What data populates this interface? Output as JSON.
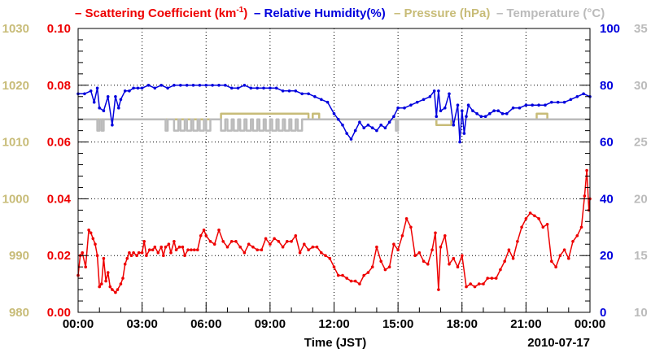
{
  "chart_data": {
    "type": "line",
    "title": "",
    "xlabel": "Time (JST)",
    "date_label": "2010-07-17",
    "x_ticks": [
      "00:00",
      "03:00",
      "06:00",
      "09:00",
      "12:00",
      "15:00",
      "18:00",
      "21:00",
      "00:00"
    ],
    "x_range_hours": [
      0,
      24
    ],
    "grid": true,
    "legend": {
      "scattering": {
        "dash": "–",
        "text": "Scattering Coefficient (km",
        "sup": "-1",
        "close": ")"
      },
      "humidity": "– Relative Humidity(%)",
      "pressure": "– Pressure (hPa)",
      "temperature": "– Temperature (°C)"
    },
    "axes": {
      "scattering": {
        "ylim": [
          0,
          0.1
        ],
        "ticks": [
          "0.00",
          "0.02",
          "0.04",
          "0.06",
          "0.08",
          "0.10"
        ],
        "color": "#ee0000"
      },
      "pressure": {
        "ylim": [
          980,
          1030
        ],
        "ticks": [
          "980",
          "990",
          "1000",
          "1010",
          "1020",
          "1030"
        ],
        "color": "#c8bc78"
      },
      "humidity": {
        "ylim": [
          0,
          100
        ],
        "ticks": [
          "0",
          "20",
          "40",
          "60",
          "80",
          "100"
        ],
        "color": "#0000dd"
      },
      "temperature": {
        "ylim": [
          10,
          35
        ],
        "ticks": [
          "10",
          "15",
          "20",
          "25",
          "30",
          "35"
        ],
        "color": "#bbbbbb"
      }
    },
    "series": [
      {
        "name": "Scattering Coefficient",
        "unit": "km-1",
        "axis": "scattering",
        "color": "#ee0000",
        "x": [
          0,
          0.1,
          0.2,
          0.35,
          0.5,
          0.6,
          0.7,
          0.8,
          0.9,
          1.0,
          1.1,
          1.2,
          1.3,
          1.4,
          1.5,
          1.6,
          1.75,
          1.85,
          2.0,
          2.1,
          2.2,
          2.3,
          2.4,
          2.5,
          2.6,
          2.75,
          2.85,
          3.0,
          3.1,
          3.2,
          3.35,
          3.5,
          3.6,
          3.75,
          3.9,
          4.0,
          4.1,
          4.25,
          4.35,
          4.5,
          4.6,
          4.75,
          4.9,
          5.0,
          5.15,
          5.3,
          5.45,
          5.6,
          5.75,
          5.9,
          6.0,
          6.2,
          6.4,
          6.6,
          6.8,
          7.0,
          7.2,
          7.4,
          7.6,
          7.8,
          8.0,
          8.2,
          8.4,
          8.6,
          8.8,
          9.0,
          9.2,
          9.4,
          9.6,
          9.8,
          10.0,
          10.2,
          10.4,
          10.6,
          10.8,
          11.0,
          11.2,
          11.4,
          11.6,
          11.8,
          12.0,
          12.2,
          12.4,
          12.6,
          12.8,
          13.0,
          13.2,
          13.4,
          13.6,
          13.8,
          14.0,
          14.2,
          14.4,
          14.6,
          14.8,
          15.0,
          15.2,
          15.4,
          15.6,
          15.8,
          16.0,
          16.2,
          16.4,
          16.6,
          16.75,
          16.9,
          17.0,
          17.2,
          17.4,
          17.6,
          17.8,
          18.0,
          18.2,
          18.4,
          18.6,
          18.8,
          19.0,
          19.2,
          19.4,
          19.6,
          19.8,
          20.0,
          20.2,
          20.4,
          20.6,
          20.8,
          21.0,
          21.2,
          21.4,
          21.6,
          21.8,
          22.0,
          22.2,
          22.4,
          22.6,
          22.8,
          23.0,
          23.2,
          23.4,
          23.6,
          23.75,
          23.85,
          23.95,
          24.0
        ],
        "y": [
          0.013,
          0.02,
          0.021,
          0.016,
          0.029,
          0.028,
          0.026,
          0.024,
          0.02,
          0.009,
          0.01,
          0.019,
          0.011,
          0.014,
          0.009,
          0.008,
          0.007,
          0.008,
          0.01,
          0.012,
          0.017,
          0.019,
          0.021,
          0.02,
          0.021,
          0.02,
          0.021,
          0.021,
          0.025,
          0.02,
          0.022,
          0.022,
          0.023,
          0.021,
          0.023,
          0.02,
          0.023,
          0.024,
          0.021,
          0.025,
          0.022,
          0.023,
          0.023,
          0.02,
          0.022,
          0.022,
          0.022,
          0.022,
          0.027,
          0.029,
          0.027,
          0.025,
          0.024,
          0.029,
          0.025,
          0.023,
          0.025,
          0.025,
          0.023,
          0.021,
          0.024,
          0.023,
          0.022,
          0.022,
          0.026,
          0.024,
          0.026,
          0.025,
          0.023,
          0.025,
          0.025,
          0.027,
          0.021,
          0.024,
          0.022,
          0.023,
          0.023,
          0.021,
          0.02,
          0.019,
          0.016,
          0.013,
          0.013,
          0.012,
          0.011,
          0.011,
          0.01,
          0.013,
          0.014,
          0.016,
          0.023,
          0.018,
          0.015,
          0.016,
          0.024,
          0.022,
          0.027,
          0.033,
          0.03,
          0.02,
          0.021,
          0.018,
          0.017,
          0.022,
          0.028,
          0.008,
          0.023,
          0.027,
          0.017,
          0.019,
          0.016,
          0.02,
          0.009,
          0.01,
          0.009,
          0.01,
          0.01,
          0.012,
          0.012,
          0.012,
          0.015,
          0.018,
          0.022,
          0.019,
          0.025,
          0.03,
          0.033,
          0.035,
          0.034,
          0.033,
          0.03,
          0.031,
          0.018,
          0.016,
          0.02,
          0.022,
          0.019,
          0.025,
          0.027,
          0.03,
          0.041,
          0.05,
          0.036,
          0.04
        ]
      },
      {
        "name": "Relative Humidity",
        "unit": "%",
        "axis": "humidity",
        "color": "#0000dd",
        "x": [
          0,
          0.3,
          0.6,
          0.75,
          0.9,
          1.0,
          1.2,
          1.4,
          1.6,
          1.75,
          1.9,
          2.0,
          2.2,
          2.4,
          2.6,
          2.8,
          3.0,
          3.3,
          3.6,
          3.9,
          4.2,
          4.5,
          4.8,
          5.1,
          5.4,
          5.7,
          6.0,
          6.3,
          6.6,
          6.9,
          7.2,
          7.5,
          7.8,
          8.1,
          8.4,
          8.7,
          9.0,
          9.3,
          9.6,
          9.9,
          10.2,
          10.5,
          10.8,
          11.1,
          11.4,
          11.7,
          12.0,
          12.2,
          12.4,
          12.6,
          12.8,
          13.0,
          13.2,
          13.4,
          13.6,
          13.8,
          14.0,
          14.2,
          14.4,
          14.6,
          14.8,
          15.0,
          15.3,
          15.6,
          15.9,
          16.2,
          16.5,
          16.7,
          16.8,
          16.9,
          17.0,
          17.2,
          17.4,
          17.6,
          17.8,
          17.9,
          18.0,
          18.1,
          18.2,
          18.3,
          18.5,
          18.7,
          18.9,
          19.1,
          19.3,
          19.5,
          19.7,
          19.9,
          20.1,
          20.4,
          20.7,
          21.0,
          21.3,
          21.6,
          21.9,
          22.2,
          22.5,
          22.8,
          23.1,
          23.4,
          23.7,
          24.0
        ],
        "y": [
          77,
          77,
          78,
          74,
          79,
          72,
          71,
          76,
          66,
          76,
          72,
          75,
          78,
          78,
          79,
          79,
          79,
          80,
          79,
          80,
          79,
          80,
          80,
          80,
          80,
          80,
          80,
          80,
          80,
          80,
          79,
          79,
          80,
          79,
          79,
          79,
          79,
          79,
          78,
          78,
          78,
          77,
          77,
          76,
          75,
          74,
          70,
          68,
          66,
          63,
          61,
          64,
          67,
          65,
          66,
          65,
          64,
          66,
          65,
          67,
          69,
          72,
          72,
          73,
          74,
          75,
          76,
          78,
          69,
          78,
          71,
          72,
          77,
          66,
          73,
          60,
          71,
          63,
          69,
          73,
          71,
          70,
          69,
          69,
          70,
          71,
          71,
          70,
          70,
          72,
          72,
          73,
          73,
          73,
          73,
          74,
          74,
          74,
          75,
          76,
          77,
          76
        ]
      },
      {
        "name": "Pressure",
        "unit": "hPa",
        "axis": "pressure",
        "color": "#c8bc78",
        "x": [
          0,
          2.0,
          4.0,
          6.0,
          6.7,
          7.5,
          9.0,
          10.5,
          10.8,
          11.0,
          11.3,
          12.0,
          14.0,
          15.5,
          16.5,
          16.8,
          17.5,
          18.0,
          19.0,
          20.0,
          21.0,
          21.5,
          22.0,
          23.0,
          24.0
        ],
        "y": [
          1014,
          1014,
          1014,
          1014,
          1015,
          1015,
          1015,
          1015,
          1014,
          1015,
          1014,
          1014,
          1014,
          1014,
          1014,
          1013,
          1014,
          1014,
          1014,
          1014,
          1014,
          1015,
          1014,
          1014,
          1014
        ]
      },
      {
        "name": "Temperature",
        "unit": "C",
        "axis": "temperature",
        "color": "#bbbbbb",
        "x": [
          0,
          0.8,
          0.9,
          1.0,
          1.1,
          1.2,
          4.0,
          4.1,
          4.2,
          4.4,
          4.5,
          4.7,
          4.8,
          5.0,
          5.1,
          5.3,
          5.4,
          5.6,
          5.7,
          5.9,
          6.0,
          6.2,
          6.3,
          6.6,
          6.7,
          6.9,
          7.0,
          7.2,
          7.3,
          7.5,
          7.6,
          7.8,
          7.9,
          8.1,
          8.2,
          8.4,
          8.5,
          8.7,
          8.8,
          9.0,
          9.1,
          9.3,
          9.4,
          9.6,
          9.7,
          9.9,
          10.0,
          10.2,
          10.3,
          10.5,
          10.6,
          12.0,
          14.0,
          14.8,
          14.9,
          15.0,
          15.1,
          15.2,
          20.0,
          21.0,
          22.0,
          24.0
        ],
        "y": [
          27,
          27,
          26,
          27,
          26,
          27,
          27,
          26,
          27,
          27,
          26,
          27,
          26,
          27,
          26,
          27,
          26,
          27,
          26,
          27,
          26,
          27,
          27,
          27,
          26,
          27,
          26,
          27,
          26,
          27,
          26,
          27,
          26,
          27,
          26,
          27,
          26,
          27,
          26,
          27,
          26,
          27,
          26,
          27,
          26,
          27,
          26,
          27,
          26,
          27,
          27,
          27,
          27,
          27,
          26,
          27,
          27,
          27,
          27,
          27,
          27,
          27
        ]
      }
    ]
  }
}
